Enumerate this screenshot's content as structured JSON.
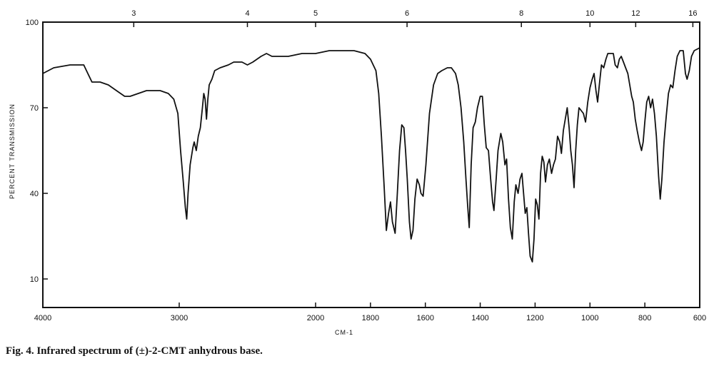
{
  "caption": "Fig. 4. Infrared spectrum of (±)-2-CMT anhydrous base.",
  "chart_data": {
    "type": "line",
    "xlabel": "CM-1",
    "ylabel": "PERCENT TRANSMISSION",
    "xlim": [
      4000,
      600
    ],
    "ylim": [
      0,
      100
    ],
    "x_ticks_bottom": [
      {
        "value": 4000,
        "label": "4000"
      },
      {
        "value": 3000,
        "label": "3000"
      },
      {
        "value": 2000,
        "label": "2000"
      },
      {
        "value": 1800,
        "label": "1800"
      },
      {
        "value": 1600,
        "label": "1600"
      },
      {
        "value": 1400,
        "label": "1400"
      },
      {
        "value": 1200,
        "label": "1200"
      },
      {
        "value": 1000,
        "label": "1000"
      },
      {
        "value": 800,
        "label": "800"
      },
      {
        "value": 600,
        "label": "600"
      }
    ],
    "x_ticks_top": [
      {
        "value": 3,
        "label": "3"
      },
      {
        "value": 4,
        "label": "4"
      },
      {
        "value": 5,
        "label": "5"
      },
      {
        "value": 6,
        "label": "6"
      },
      {
        "value": 8,
        "label": "8"
      },
      {
        "value": 10,
        "label": "10"
      },
      {
        "value": 12,
        "label": "12"
      },
      {
        "value": 16,
        "label": "16"
      }
    ],
    "y_ticks": [
      {
        "value": 100,
        "label": "100"
      },
      {
        "value": 70,
        "label": "70"
      },
      {
        "value": 40,
        "label": "40"
      },
      {
        "value": 10,
        "label": "10"
      }
    ],
    "series": [
      {
        "points": [
          [
            4000,
            82
          ],
          [
            3920,
            84
          ],
          [
            3800,
            85
          ],
          [
            3700,
            85
          ],
          [
            3670,
            82
          ],
          [
            3640,
            79
          ],
          [
            3580,
            79
          ],
          [
            3520,
            78
          ],
          [
            3460,
            76
          ],
          [
            3400,
            74
          ],
          [
            3360,
            74
          ],
          [
            3300,
            75
          ],
          [
            3240,
            76
          ],
          [
            3200,
            76
          ],
          [
            3140,
            76
          ],
          [
            3080,
            75
          ],
          [
            3040,
            73
          ],
          [
            3010,
            68
          ],
          [
            2990,
            55
          ],
          [
            2970,
            44
          ],
          [
            2955,
            35
          ],
          [
            2945,
            31
          ],
          [
            2935,
            40
          ],
          [
            2920,
            50
          ],
          [
            2900,
            56
          ],
          [
            2890,
            58
          ],
          [
            2875,
            55
          ],
          [
            2860,
            60
          ],
          [
            2845,
            63
          ],
          [
            2830,
            70
          ],
          [
            2820,
            75
          ],
          [
            2810,
            73
          ],
          [
            2800,
            66
          ],
          [
            2790,
            73
          ],
          [
            2780,
            78
          ],
          [
            2760,
            80
          ],
          [
            2740,
            83
          ],
          [
            2700,
            84
          ],
          [
            2640,
            85
          ],
          [
            2600,
            86
          ],
          [
            2540,
            86
          ],
          [
            2500,
            85
          ],
          [
            2460,
            86
          ],
          [
            2400,
            88
          ],
          [
            2360,
            89
          ],
          [
            2320,
            88
          ],
          [
            2280,
            88
          ],
          [
            2200,
            88
          ],
          [
            2100,
            89
          ],
          [
            2000,
            89
          ],
          [
            1950,
            90
          ],
          [
            1900,
            90
          ],
          [
            1860,
            90
          ],
          [
            1820,
            89
          ],
          [
            1800,
            87
          ],
          [
            1780,
            83
          ],
          [
            1770,
            75
          ],
          [
            1760,
            60
          ],
          [
            1750,
            42
          ],
          [
            1742,
            27
          ],
          [
            1734,
            33
          ],
          [
            1727,
            37
          ],
          [
            1720,
            30
          ],
          [
            1710,
            26
          ],
          [
            1702,
            40
          ],
          [
            1694,
            55
          ],
          [
            1686,
            64
          ],
          [
            1678,
            63
          ],
          [
            1672,
            55
          ],
          [
            1666,
            45
          ],
          [
            1658,
            30
          ],
          [
            1652,
            24
          ],
          [
            1645,
            27
          ],
          [
            1638,
            38
          ],
          [
            1630,
            45
          ],
          [
            1622,
            43
          ],
          [
            1616,
            40
          ],
          [
            1608,
            39
          ],
          [
            1598,
            50
          ],
          [
            1585,
            68
          ],
          [
            1570,
            78
          ],
          [
            1555,
            82
          ],
          [
            1540,
            83
          ],
          [
            1520,
            84
          ],
          [
            1505,
            84
          ],
          [
            1490,
            82
          ],
          [
            1480,
            78
          ],
          [
            1470,
            70
          ],
          [
            1460,
            58
          ],
          [
            1452,
            45
          ],
          [
            1446,
            36
          ],
          [
            1440,
            28
          ],
          [
            1433,
            50
          ],
          [
            1426,
            63
          ],
          [
            1418,
            65
          ],
          [
            1410,
            70
          ],
          [
            1400,
            74
          ],
          [
            1392,
            74
          ],
          [
            1385,
            64
          ],
          [
            1378,
            56
          ],
          [
            1370,
            55
          ],
          [
            1362,
            45
          ],
          [
            1355,
            37
          ],
          [
            1350,
            34
          ],
          [
            1342,
            45
          ],
          [
            1335,
            55
          ],
          [
            1325,
            61
          ],
          [
            1318,
            58
          ],
          [
            1310,
            50
          ],
          [
            1304,
            52
          ],
          [
            1297,
            38
          ],
          [
            1290,
            28
          ],
          [
            1283,
            24
          ],
          [
            1276,
            37
          ],
          [
            1270,
            43
          ],
          [
            1262,
            40
          ],
          [
            1255,
            45
          ],
          [
            1248,
            47
          ],
          [
            1242,
            40
          ],
          [
            1236,
            33
          ],
          [
            1230,
            35
          ],
          [
            1224,
            26
          ],
          [
            1218,
            18
          ],
          [
            1210,
            16
          ],
          [
            1204,
            24
          ],
          [
            1198,
            38
          ],
          [
            1192,
            36
          ],
          [
            1186,
            31
          ],
          [
            1180,
            47
          ],
          [
            1174,
            53
          ],
          [
            1168,
            51
          ],
          [
            1162,
            44
          ],
          [
            1155,
            50
          ],
          [
            1148,
            52
          ],
          [
            1140,
            47
          ],
          [
            1133,
            50
          ],
          [
            1126,
            52
          ],
          [
            1118,
            60
          ],
          [
            1110,
            58
          ],
          [
            1104,
            54
          ],
          [
            1097,
            62
          ],
          [
            1090,
            66
          ],
          [
            1083,
            70
          ],
          [
            1076,
            63
          ],
          [
            1070,
            55
          ],
          [
            1064,
            50
          ],
          [
            1058,
            42
          ],
          [
            1052,
            55
          ],
          [
            1046,
            64
          ],
          [
            1040,
            70
          ],
          [
            1032,
            69
          ],
          [
            1024,
            68
          ],
          [
            1016,
            65
          ],
          [
            1008,
            72
          ],
          [
            1000,
            77
          ],
          [
            992,
            80
          ],
          [
            985,
            82
          ],
          [
            978,
            76
          ],
          [
            972,
            72
          ],
          [
            966,
            78
          ],
          [
            958,
            85
          ],
          [
            950,
            84
          ],
          [
            942,
            87
          ],
          [
            935,
            89
          ],
          [
            925,
            89
          ],
          [
            915,
            89
          ],
          [
            908,
            85
          ],
          [
            900,
            84
          ],
          [
            893,
            87
          ],
          [
            886,
            88
          ],
          [
            878,
            86
          ],
          [
            870,
            84
          ],
          [
            862,
            82
          ],
          [
            855,
            78
          ],
          [
            848,
            74
          ],
          [
            842,
            72
          ],
          [
            835,
            66
          ],
          [
            828,
            62
          ],
          [
            820,
            58
          ],
          [
            812,
            55
          ],
          [
            806,
            58
          ],
          [
            800,
            65
          ],
          [
            793,
            72
          ],
          [
            786,
            74
          ],
          [
            779,
            70
          ],
          [
            772,
            73
          ],
          [
            765,
            68
          ],
          [
            758,
            60
          ],
          [
            750,
            46
          ],
          [
            744,
            38
          ],
          [
            738,
            45
          ],
          [
            730,
            58
          ],
          [
            722,
            67
          ],
          [
            714,
            75
          ],
          [
            706,
            78
          ],
          [
            698,
            77
          ],
          [
            690,
            83
          ],
          [
            682,
            88
          ],
          [
            672,
            90
          ],
          [
            660,
            90
          ],
          [
            652,
            82
          ],
          [
            646,
            80
          ],
          [
            638,
            83
          ],
          [
            630,
            88
          ],
          [
            620,
            90
          ],
          [
            600,
            91
          ]
        ]
      }
    ]
  }
}
